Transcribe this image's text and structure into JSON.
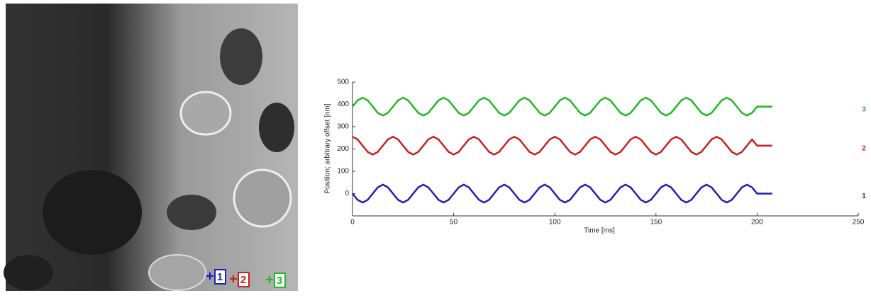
{
  "chart_data": {
    "type": "line",
    "xlabel": "Time [ms]",
    "ylabel": "Position; arbitrary offset [nm]",
    "x": [
      0,
      2.5,
      5,
      7.5,
      10,
      12.5,
      15,
      17.5,
      20,
      22.5,
      25,
      27.5,
      30,
      32.5,
      35,
      37.5,
      40,
      42.5,
      45,
      47.5,
      50,
      52.5,
      55,
      57.5,
      60,
      62.5,
      65,
      67.5,
      70,
      72.5,
      75,
      77.5,
      80,
      82.5,
      85,
      87.5,
      90,
      92.5,
      95,
      97.5,
      100,
      102.5,
      105,
      107.5,
      110,
      112.5,
      115,
      117.5,
      120,
      122.5,
      125,
      127.5,
      130,
      132.5,
      135,
      137.5,
      140,
      142.5,
      145,
      147.5,
      150,
      152.5,
      155,
      157.5,
      160,
      162.5,
      165,
      167.5,
      170,
      172.5,
      175,
      177.5,
      180,
      182.5,
      185,
      187.5,
      190,
      192.5,
      195,
      197.5,
      200,
      202.5,
      205,
      207.5
    ],
    "series": [
      {
        "name": "1",
        "color": "#1f1fb4",
        "values": [
          0,
          -28,
          -40,
          -28,
          0,
          28,
          40,
          28,
          0,
          -28,
          -40,
          -28,
          0,
          28,
          40,
          28,
          0,
          -28,
          -40,
          -28,
          0,
          28,
          40,
          28,
          0,
          -28,
          -40,
          -28,
          0,
          28,
          40,
          28,
          0,
          -28,
          -40,
          -28,
          0,
          28,
          40,
          28,
          0,
          -28,
          -40,
          -28,
          0,
          28,
          40,
          28,
          0,
          -28,
          -40,
          -28,
          0,
          28,
          40,
          28,
          0,
          -28,
          -40,
          -28,
          0,
          28,
          40,
          28,
          0,
          -28,
          -40,
          -28,
          0,
          28,
          40,
          28,
          0,
          -28,
          -40,
          -28,
          0,
          28,
          40,
          28,
          0,
          0,
          0,
          0
        ]
      },
      {
        "name": "2",
        "color": "#c82020",
        "values": [
          255,
          243,
          215,
          187,
          175,
          187,
          215,
          243,
          255,
          243,
          215,
          187,
          175,
          187,
          215,
          243,
          255,
          243,
          215,
          187,
          175,
          187,
          215,
          243,
          255,
          243,
          215,
          187,
          175,
          187,
          215,
          243,
          255,
          243,
          215,
          187,
          175,
          187,
          215,
          243,
          255,
          243,
          215,
          187,
          175,
          187,
          215,
          243,
          255,
          243,
          215,
          187,
          175,
          187,
          215,
          243,
          255,
          243,
          215,
          187,
          175,
          187,
          215,
          243,
          255,
          243,
          215,
          187,
          175,
          187,
          215,
          243,
          255,
          243,
          215,
          187,
          175,
          187,
          215,
          243,
          215,
          215,
          215,
          215
        ]
      },
      {
        "name": "3",
        "color": "#22b822",
        "values": [
          390,
          418,
          430,
          418,
          390,
          362,
          350,
          362,
          390,
          418,
          430,
          418,
          390,
          362,
          350,
          362,
          390,
          418,
          430,
          418,
          390,
          362,
          350,
          362,
          390,
          418,
          430,
          418,
          390,
          362,
          350,
          362,
          390,
          418,
          430,
          418,
          390,
          362,
          350,
          362,
          390,
          418,
          430,
          418,
          390,
          362,
          350,
          362,
          390,
          418,
          430,
          418,
          390,
          362,
          350,
          362,
          390,
          418,
          430,
          418,
          390,
          362,
          350,
          362,
          390,
          418,
          430,
          418,
          390,
          362,
          350,
          362,
          390,
          418,
          430,
          418,
          390,
          362,
          350,
          362,
          390,
          390,
          390,
          390
        ]
      }
    ],
    "xlim": [
      0,
      250
    ],
    "xticks": [
      0,
      50,
      100,
      150,
      200,
      250
    ],
    "ylim": [
      -100,
      500
    ],
    "yticks": [
      0,
      100,
      200,
      300,
      400,
      500
    ]
  }
}
